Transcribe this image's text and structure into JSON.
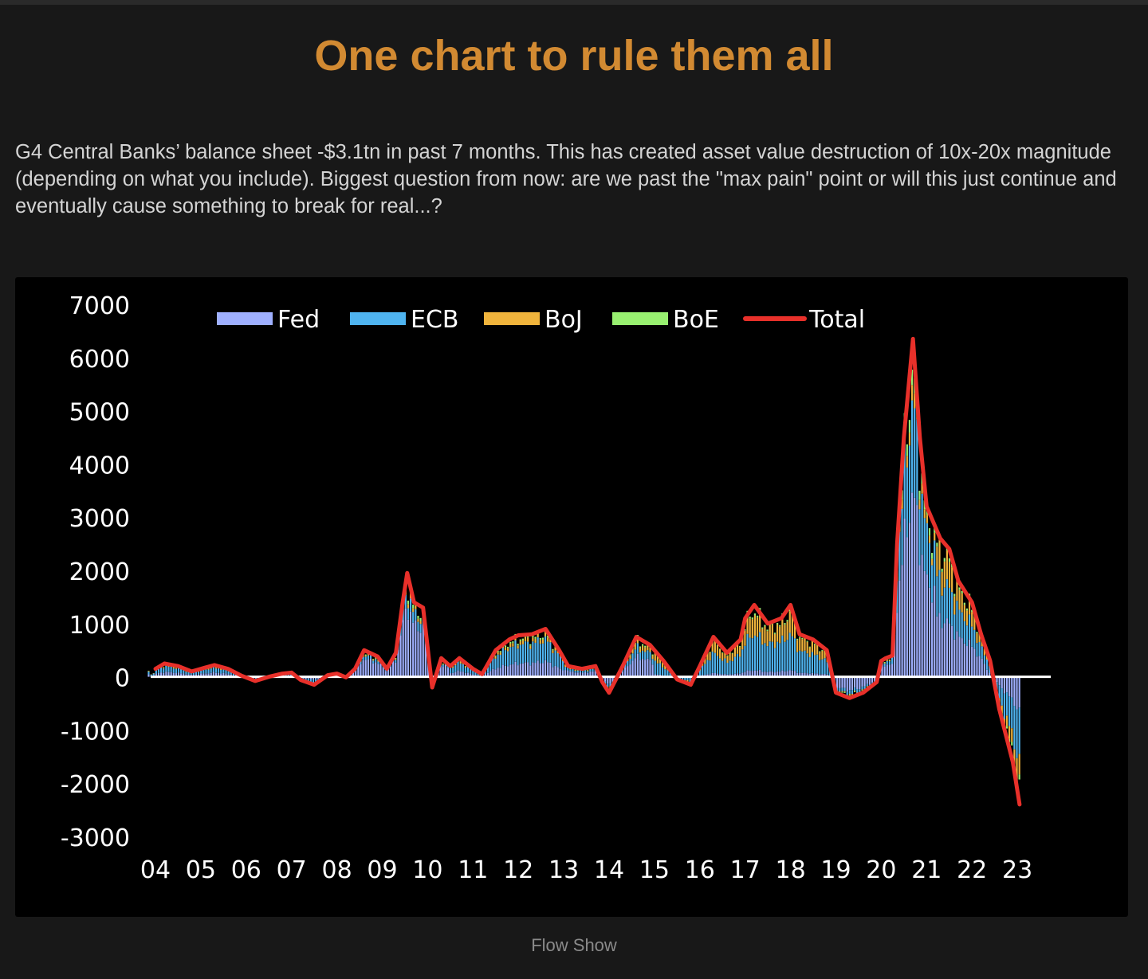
{
  "page": {
    "title": "One chart to rule them all",
    "description": "G4 Central Banks’ balance sheet -$3.1tn in past 7 months. This has created asset value destruction of 10x-20x magnitude (depending on what you include). Biggest question from now: are we past the \"max pain\" point or will this just continue and eventually cause something to break for real...?",
    "caption": "Flow Show"
  },
  "colors": {
    "background": "#181818",
    "title": "#d28a32",
    "Fed": "#9fb0ff",
    "ECB": "#4fb4f0",
    "BoJ": "#f0b43c",
    "BoE": "#98f070",
    "Total": "#e8302a",
    "zero_line": "#ffffff"
  },
  "chart_data": {
    "type": "bar",
    "stacked": true,
    "title": "",
    "xlabel": "",
    "ylabel": "",
    "ylim": [
      -3000,
      7000
    ],
    "yticks": [
      7000,
      6000,
      5000,
      4000,
      3000,
      2000,
      1000,
      0,
      -1000,
      -2000,
      -3000
    ],
    "xticks": [
      "04",
      "05",
      "06",
      "07",
      "08",
      "09",
      "10",
      "11",
      "12",
      "13",
      "14",
      "15",
      "16",
      "17",
      "18",
      "19",
      "20",
      "21",
      "22",
      "23"
    ],
    "legend_position": "top",
    "grid": false,
    "legend": [
      {
        "name": "Fed",
        "kind": "bar"
      },
      {
        "name": "ECB",
        "kind": "bar"
      },
      {
        "name": "BoJ",
        "kind": "bar"
      },
      {
        "name": "BoE",
        "kind": "bar"
      },
      {
        "name": "Total",
        "kind": "line"
      }
    ],
    "series": [
      {
        "name": "Total",
        "type": "line",
        "points": [
          [
            2004.0,
            150
          ],
          [
            2004.2,
            250
          ],
          [
            2004.5,
            200
          ],
          [
            2004.8,
            100
          ],
          [
            2005.0,
            150
          ],
          [
            2005.3,
            220
          ],
          [
            2005.6,
            150
          ],
          [
            2005.9,
            20
          ],
          [
            2006.2,
            -80
          ],
          [
            2006.5,
            0
          ],
          [
            2006.8,
            60
          ],
          [
            2007.0,
            80
          ],
          [
            2007.2,
            -60
          ],
          [
            2007.5,
            -150
          ],
          [
            2007.8,
            30
          ],
          [
            2008.0,
            60
          ],
          [
            2008.2,
            -10
          ],
          [
            2008.4,
            150
          ],
          [
            2008.6,
            500
          ],
          [
            2008.9,
            380
          ],
          [
            2009.1,
            150
          ],
          [
            2009.3,
            450
          ],
          [
            2009.45,
            1400
          ],
          [
            2009.55,
            1950
          ],
          [
            2009.7,
            1400
          ],
          [
            2009.9,
            1300
          ],
          [
            2010.1,
            -200
          ],
          [
            2010.3,
            350
          ],
          [
            2010.5,
            200
          ],
          [
            2010.7,
            350
          ],
          [
            2011.0,
            150
          ],
          [
            2011.2,
            50
          ],
          [
            2011.5,
            500
          ],
          [
            2011.8,
            700
          ],
          [
            2012.0,
            780
          ],
          [
            2012.3,
            800
          ],
          [
            2012.6,
            900
          ],
          [
            2012.9,
            500
          ],
          [
            2013.1,
            200
          ],
          [
            2013.4,
            150
          ],
          [
            2013.7,
            200
          ],
          [
            2013.85,
            -100
          ],
          [
            2014.0,
            -300
          ],
          [
            2014.3,
            200
          ],
          [
            2014.6,
            750
          ],
          [
            2014.9,
            600
          ],
          [
            2015.2,
            300
          ],
          [
            2015.5,
            -50
          ],
          [
            2015.8,
            -150
          ],
          [
            2016.0,
            200
          ],
          [
            2016.3,
            750
          ],
          [
            2016.6,
            450
          ],
          [
            2016.9,
            700
          ],
          [
            2017.0,
            1100
          ],
          [
            2017.2,
            1350
          ],
          [
            2017.5,
            1000
          ],
          [
            2017.8,
            1100
          ],
          [
            2018.0,
            1350
          ],
          [
            2018.2,
            800
          ],
          [
            2018.5,
            700
          ],
          [
            2018.8,
            500
          ],
          [
            2019.0,
            -300
          ],
          [
            2019.3,
            -400
          ],
          [
            2019.6,
            -300
          ],
          [
            2019.9,
            -100
          ],
          [
            2020.0,
            300
          ],
          [
            2020.1,
            350
          ],
          [
            2020.25,
            400
          ],
          [
            2020.35,
            2500
          ],
          [
            2020.5,
            4500
          ],
          [
            2020.7,
            6350
          ],
          [
            2020.85,
            4500
          ],
          [
            2021.0,
            3200
          ],
          [
            2021.3,
            2600
          ],
          [
            2021.5,
            2400
          ],
          [
            2021.7,
            1800
          ],
          [
            2022.0,
            1400
          ],
          [
            2022.2,
            800
          ],
          [
            2022.4,
            300
          ],
          [
            2022.6,
            -600
          ],
          [
            2022.9,
            -1600
          ],
          [
            2023.05,
            -2400
          ]
        ]
      },
      {
        "name": "Fed",
        "type": "bar",
        "note": "stacked component"
      },
      {
        "name": "ECB",
        "type": "bar",
        "note": "stacked component"
      },
      {
        "name": "BoJ",
        "type": "bar",
        "note": "stacked component"
      },
      {
        "name": "BoE",
        "type": "bar",
        "note": "stacked component"
      }
    ]
  }
}
